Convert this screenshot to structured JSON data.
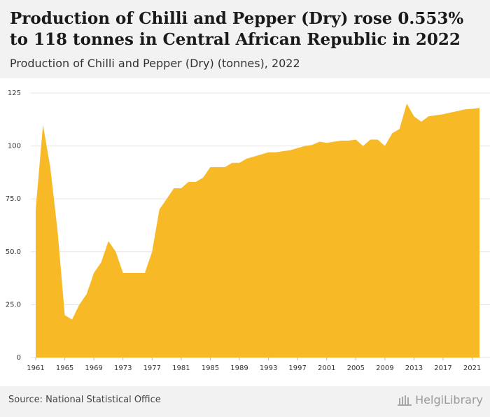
{
  "header": {
    "title": "Production of Chilli and Pepper (Dry) rose 0.553% to 118 tonnes in Central African Republic in 2022",
    "subtitle": "Production of Chilli and Pepper (Dry) (tonnes), 2022"
  },
  "footer": {
    "source": "Source: National Statistical Office",
    "logo_text": "HelgiLibrary"
  },
  "colors": {
    "area": "#f7b926",
    "grid": "#e6e6e6",
    "header_bg": "#f2f2f2"
  },
  "chart_data": {
    "type": "area",
    "x": [
      1961,
      1962,
      1963,
      1964,
      1965,
      1966,
      1967,
      1968,
      1969,
      1970,
      1971,
      1972,
      1973,
      1974,
      1975,
      1976,
      1977,
      1978,
      1979,
      1980,
      1981,
      1982,
      1983,
      1984,
      1985,
      1986,
      1987,
      1988,
      1989,
      1990,
      1991,
      1992,
      1993,
      1994,
      1995,
      1996,
      1997,
      1998,
      1999,
      2000,
      2001,
      2002,
      2003,
      2004,
      2005,
      2006,
      2007,
      2008,
      2009,
      2010,
      2011,
      2012,
      2013,
      2014,
      2015,
      2016,
      2017,
      2018,
      2019,
      2020,
      2021,
      2022
    ],
    "values": [
      70,
      110,
      90,
      60,
      20,
      18,
      25,
      30,
      40,
      45,
      55,
      50,
      40,
      40,
      40,
      40,
      50,
      70,
      75,
      80,
      80,
      83,
      83,
      85,
      90,
      90,
      90,
      92,
      92,
      94,
      95,
      96,
      97,
      97,
      97.5,
      98,
      99,
      100,
      100.5,
      102,
      101.5,
      102,
      102.5,
      102.5,
      103,
      100,
      103,
      103,
      100,
      106,
      108,
      120,
      114,
      111.5,
      114,
      114.5,
      115,
      115.8,
      116.5,
      117.3,
      117.5,
      118
    ],
    "xticks": [
      "1961",
      "1965",
      "1969",
      "1973",
      "1977",
      "1981",
      "1985",
      "1989",
      "1993",
      "1997",
      "2001",
      "2005",
      "2009",
      "2013",
      "2017",
      "2021"
    ],
    "yticks": [
      "0",
      "25.0",
      "50.0",
      "75.0",
      "100",
      "125"
    ],
    "ylim": [
      0,
      125
    ],
    "xlim": [
      1961,
      2022
    ],
    "grid": true
  }
}
